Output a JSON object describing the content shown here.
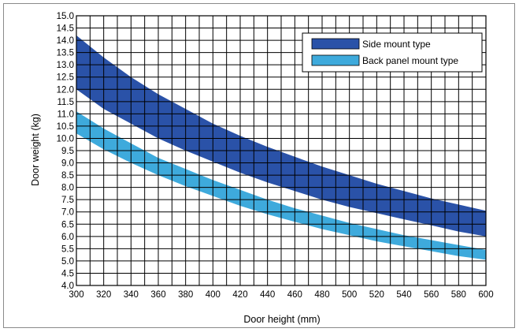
{
  "chart_data": {
    "type": "area",
    "title": "",
    "xlabel": "Door height (mm)",
    "ylabel": "Door weight (kg)",
    "xlim": [
      300,
      600
    ],
    "ylim": [
      4.0,
      15.0
    ],
    "grid": true,
    "legend_placement": "top-right",
    "x_ticks": [
      "300",
      "320",
      "340",
      "360",
      "380",
      "400",
      "420",
      "440",
      "460",
      "480",
      "500",
      "520",
      "540",
      "560",
      "580",
      "600"
    ],
    "y_ticks": [
      "4.0",
      "4.5",
      "5.0",
      "5.5",
      "6.0",
      "6.5",
      "7.0",
      "7.5",
      "8.0",
      "8.5",
      "9.0",
      "9.5",
      "10.0",
      "10.5",
      "11.0",
      "11.5",
      "12.0",
      "12.5",
      "13.0",
      "13.5",
      "14.0",
      "14.5",
      "15.0"
    ],
    "x_grid_step": 10,
    "y_grid_step": 0.5,
    "x": [
      300,
      320,
      340,
      360,
      380,
      400,
      420,
      440,
      460,
      480,
      500,
      520,
      540,
      560,
      580,
      600
    ],
    "series": [
      {
        "name": "Side mount type",
        "color": "#2a52a8",
        "upper": [
          14.2,
          13.3,
          12.5,
          11.8,
          11.2,
          10.6,
          10.1,
          9.65,
          9.25,
          8.85,
          8.5,
          8.15,
          7.85,
          7.55,
          7.3,
          7.05
        ],
        "lower": [
          12.0,
          11.2,
          10.6,
          10.0,
          9.5,
          9.05,
          8.6,
          8.2,
          7.85,
          7.5,
          7.2,
          6.95,
          6.7,
          6.45,
          6.2,
          6.0
        ]
      },
      {
        "name": "Back panel mount type",
        "color": "#3eaadc",
        "upper": [
          11.1,
          10.4,
          9.8,
          9.2,
          8.75,
          8.3,
          7.9,
          7.5,
          7.15,
          6.85,
          6.55,
          6.3,
          6.05,
          5.85,
          5.65,
          5.45
        ],
        "lower": [
          10.2,
          9.55,
          9.0,
          8.5,
          8.05,
          7.65,
          7.25,
          6.9,
          6.6,
          6.3,
          6.05,
          5.8,
          5.6,
          5.4,
          5.2,
          5.05
        ]
      }
    ]
  }
}
